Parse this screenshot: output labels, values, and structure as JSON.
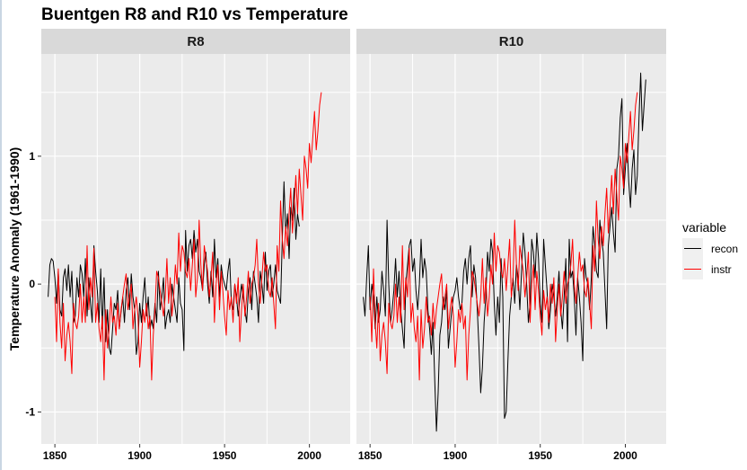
{
  "chart_data": {
    "type": "line",
    "title": "Buentgen R8 and R10 vs Temperature",
    "xlabel": "",
    "ylabel": "Temperature Anomaly (1961-1990)",
    "x_ticks": [
      1850,
      1900,
      1950,
      2000
    ],
    "x_tick_labels": [
      "1850",
      "1900",
      "1950",
      "2000"
    ],
    "y_ticks": [
      -1,
      0,
      1
    ],
    "y_tick_labels": [
      "-1",
      "0",
      "1"
    ],
    "xlim": [
      1842,
      2024
    ],
    "ylim": [
      -1.25,
      1.8
    ],
    "grid": true,
    "legend": {
      "title": "variable",
      "position": "right",
      "entries": [
        {
          "label": "recon",
          "color": "#000000"
        },
        {
          "label": "instr",
          "color": "#ff0000"
        }
      ]
    },
    "facets": [
      {
        "label": "R8",
        "x_start": 1846,
        "series": [
          {
            "name": "recon",
            "color": "#000000",
            "start_year": 1846,
            "values": [
              -0.1,
              0.15,
              0.2,
              0.18,
              0.05,
              -0.15,
              0.1,
              -0.2,
              -0.25,
              0.05,
              0.12,
              -0.05,
              0.15,
              -0.1,
              0.1,
              -0.3,
              -0.25,
              0.05,
              -0.1,
              0.15,
              0.08,
              -0.1,
              0.2,
              -0.25,
              0.05,
              -0.15,
              -0.3,
              0.3,
              0.1,
              -0.05,
              -0.3,
              0.12,
              -0.35,
              0.05,
              -0.45,
              -0.2,
              -0.5,
              -0.55,
              -0.35,
              -0.15,
              -0.2,
              -0.05,
              -0.35,
              -0.22,
              -0.1,
              -0.3,
              -0.05,
              0.05,
              -0.2,
              0.08,
              -0.1,
              -0.2,
              -0.55,
              -0.45,
              -0.15,
              -0.3,
              -0.1,
              0.05,
              -0.25,
              -0.1,
              -0.35,
              -0.28,
              -0.35,
              -0.15,
              -0.3,
              0.1,
              -0.2,
              -0.1,
              0.05,
              -0.35,
              -0.25,
              -0.2,
              -0.3,
              0.0,
              -0.1,
              -0.2,
              -0.3,
              0.05,
              -0.15,
              -0.2,
              -0.52,
              0.42,
              0.1,
              0.3,
              0.35,
              0.2,
              0.42,
              0.25,
              0.35,
              0.1,
              0.05,
              -0.05,
              0.15,
              0.25,
              0.0,
              -0.15,
              0.1,
              -0.1,
              0.35,
              0.05,
              0.2,
              -0.1,
              0.15,
              0.05,
              0.0,
              -0.05,
              0.1,
              0.2,
              -0.15,
              -0.2,
              0.0,
              -0.1,
              -0.25,
              -0.12,
              0.0,
              -0.1,
              -0.2,
              -0.3,
              -0.05,
              0.05,
              -0.2,
              0.1,
              0.0,
              -0.1,
              -0.3,
              0.1,
              0.0,
              -0.15,
              0.25,
              -0.05,
              0.1,
              0.15,
              -0.1,
              0.0,
              0.15,
              -0.05,
              -0.1,
              -0.15,
              0.35,
              0.8,
              0.4,
              0.55,
              0.2,
              0.6,
              0.5,
              0.75,
              0.35,
              0.55,
              0.45
            ]
          },
          {
            "name": "instr",
            "color": "#ff0000",
            "start_year": 1850,
            "values": [
              -0.1,
              -0.45,
              0.12,
              -0.3,
              -0.5,
              -0.15,
              -0.6,
              -0.4,
              -0.3,
              -0.45,
              -0.7,
              -0.15,
              -0.3,
              -0.35,
              -0.25,
              0.0,
              -0.3,
              -0.1,
              -0.3,
              0.3,
              -0.2,
              0.05,
              -0.1,
              0.28,
              -0.3,
              -0.15,
              -0.35,
              -0.45,
              -0.25,
              -0.75,
              -0.2,
              -0.5,
              -0.35,
              -0.1,
              -0.3,
              -0.25,
              -0.4,
              -0.15,
              -0.35,
              -0.2,
              -0.1,
              0.0,
              0.08,
              -0.2,
              -0.1,
              0.0,
              -0.35,
              -0.2,
              -0.1,
              -0.25,
              -0.65,
              -0.45,
              -0.2,
              -0.3,
              -0.15,
              -0.35,
              -0.25,
              -0.75,
              -0.4,
              -0.2,
              0.1,
              0.05,
              -0.05,
              -0.15,
              -0.25,
              -0.1,
              0.2,
              -0.15,
              0.05,
              -0.25,
              -0.1,
              0.15,
              0.0,
              0.4,
              0.1,
              0.3,
              0.25,
              0.1,
              0.05,
              0.2,
              -0.05,
              0.15,
              0.35,
              -0.1,
              0.05,
              0.5,
              0.15,
              -0.05,
              0.3,
              0.2,
              0.1,
              -0.1,
              0.05,
              0.25,
              -0.3,
              0.0,
              0.15,
              -0.2,
              0.1,
              -0.05,
              -0.25,
              -0.4,
              -0.05,
              -0.2,
              -0.1,
              -0.3,
              0.0,
              -0.15,
              0.05,
              -0.45,
              -0.2,
              0.0,
              -0.25,
              -0.1,
              0.1,
              -0.15,
              0.0,
              0.05,
              0.15,
              0.35,
              0.0,
              -0.15,
              0.05,
              0.25,
              0.1,
              0.15,
              -0.05,
              -0.1,
              0.05,
              -0.15,
              -0.35,
              0.3,
              0.1,
              0.65,
              0.35,
              0.2,
              0.45,
              0.3,
              0.55,
              0.75,
              0.4,
              0.6,
              0.85,
              0.55,
              0.9,
              0.7,
              0.5,
              1.0,
              0.9,
              0.75,
              1.1,
              0.95,
              1.15,
              1.35,
              1.05,
              1.2,
              1.4,
              1.5
            ]
          }
        ]
      },
      {
        "label": "R10",
        "x_start": 1846,
        "series": [
          {
            "name": "recon",
            "color": "#000000",
            "start_year": 1846,
            "values": [
              -0.1,
              -0.25,
              0.05,
              0.3,
              -0.2,
              0.0,
              -0.1,
              -0.35,
              -0.1,
              -0.3,
              -0.2,
              0.1,
              -0.05,
              -0.25,
              0.5,
              0.0,
              -0.3,
              -0.2,
              -0.05,
              0.2,
              -0.1,
              0.1,
              -0.2,
              -0.35,
              -0.5,
              0.0,
              0.15,
              0.3,
              0.35,
              0.1,
              0.2,
              -0.05,
              -0.2,
              0.0,
              0.35,
              0.05,
              0.2,
              0.1,
              -0.2,
              -0.35,
              -0.55,
              -0.3,
              -0.75,
              -1.15,
              -0.85,
              -0.4,
              -0.3,
              -0.1,
              -0.2,
              -0.05,
              -0.5,
              -0.35,
              -0.2,
              -0.1,
              -0.05,
              0.05,
              -0.1,
              -0.2,
              -0.15,
              0.1,
              0.2,
              0.0,
              0.2,
              0.3,
              -0.1,
              0.15,
              0.05,
              -0.2,
              -0.5,
              -0.85,
              -0.65,
              -0.3,
              -0.1,
              0.25,
              0.1,
              0.35,
              0.25,
              -0.15,
              -0.4,
              -0.1,
              -0.3,
              0.2,
              -0.1,
              -1.05,
              -1.0,
              -0.6,
              -0.25,
              -0.1,
              0.05,
              -0.15,
              0.15,
              0.05,
              -0.2,
              0.1,
              0.4,
              0.25,
              0.0,
              -0.3,
              -0.15,
              0.35,
              0.25,
              0.05,
              0.4,
              0.2,
              -0.15,
              -0.3,
              0.35,
              0.15,
              -0.05,
              -0.35,
              -0.2,
              0.0,
              -0.1,
              -0.25,
              -0.1,
              0.1,
              -0.2,
              -0.35,
              -0.1,
              0.2,
              -0.45,
              0.35,
              0.05,
              0.1,
              -0.1,
              -0.4,
              0.05,
              -0.1,
              -0.3,
              -0.6,
              0.2,
              0.05,
              0.0,
              -0.2,
              0.05,
              0.45,
              0.3,
              0.1,
              0.05,
              0.5,
              0.35,
              0.25,
              -0.05,
              -0.35,
              0.3,
              0.45,
              0.6,
              0.4,
              0.25,
              0.9,
              1.0,
              1.3,
              1.45,
              0.7,
              0.9,
              1.1,
              0.8,
              0.6,
              0.9,
              1.05,
              0.7,
              0.85,
              1.3,
              1.65,
              1.2,
              1.4,
              1.6
            ]
          },
          {
            "name": "instr",
            "color": "#ff0000",
            "start_year": 1850,
            "values": [
              -0.1,
              -0.45,
              0.12,
              -0.3,
              -0.5,
              -0.15,
              -0.6,
              -0.4,
              -0.3,
              -0.45,
              -0.7,
              -0.15,
              -0.3,
              -0.35,
              -0.25,
              0.0,
              -0.3,
              -0.1,
              -0.3,
              0.3,
              -0.2,
              0.05,
              -0.1,
              0.28,
              -0.3,
              -0.15,
              -0.35,
              -0.45,
              -0.25,
              -0.75,
              -0.2,
              -0.5,
              -0.35,
              -0.1,
              -0.3,
              -0.25,
              -0.4,
              -0.15,
              -0.35,
              -0.2,
              -0.1,
              0.0,
              0.08,
              -0.2,
              -0.1,
              0.0,
              -0.35,
              -0.2,
              -0.1,
              -0.25,
              -0.65,
              -0.45,
              -0.2,
              -0.3,
              -0.15,
              -0.35,
              -0.25,
              -0.75,
              -0.4,
              -0.2,
              0.1,
              0.05,
              -0.05,
              -0.15,
              -0.25,
              -0.1,
              0.2,
              -0.15,
              0.05,
              -0.25,
              -0.1,
              0.15,
              0.0,
              0.4,
              0.1,
              0.3,
              0.25,
              0.1,
              0.05,
              0.2,
              -0.05,
              0.15,
              0.35,
              -0.1,
              0.05,
              0.5,
              0.15,
              -0.05,
              0.3,
              0.2,
              0.1,
              -0.1,
              0.05,
              0.25,
              -0.3,
              0.0,
              0.15,
              -0.2,
              0.1,
              -0.05,
              -0.25,
              -0.4,
              -0.05,
              -0.2,
              -0.1,
              -0.3,
              0.0,
              -0.15,
              0.05,
              -0.45,
              -0.2,
              0.0,
              -0.25,
              -0.1,
              0.1,
              -0.15,
              0.0,
              0.05,
              0.15,
              0.35,
              0.0,
              -0.15,
              0.05,
              0.25,
              0.1,
              0.15,
              -0.05,
              -0.1,
              0.05,
              -0.15,
              -0.35,
              0.3,
              0.1,
              0.65,
              0.35,
              0.2,
              0.45,
              0.3,
              0.55,
              0.75,
              0.4,
              0.6,
              0.85,
              0.55,
              0.9,
              0.7,
              0.5,
              1.0,
              0.9,
              0.75,
              1.1,
              0.95,
              1.15,
              1.35,
              1.05,
              1.2,
              1.4,
              1.5
            ]
          }
        ]
      }
    ]
  }
}
